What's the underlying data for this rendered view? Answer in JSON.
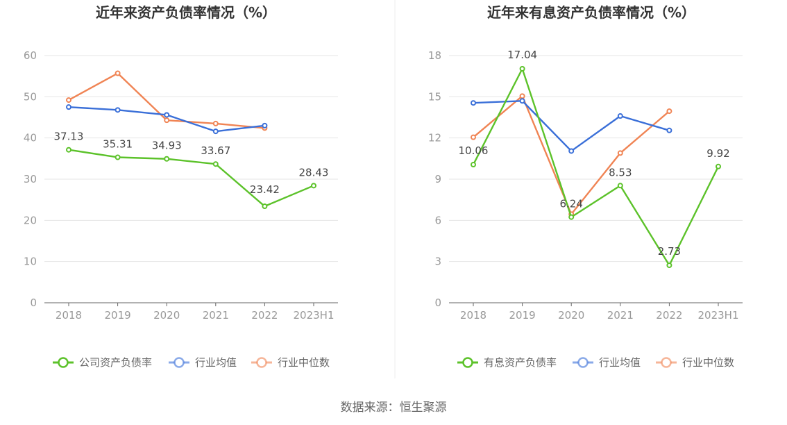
{
  "source_text": "数据来源：恒生聚源",
  "chart_data": [
    {
      "type": "line",
      "title": "近年来资产负债率情况（%）",
      "categories": [
        "2018",
        "2019",
        "2020",
        "2021",
        "2022",
        "2023H1"
      ],
      "ylim": [
        0,
        60
      ],
      "yticks": [
        0,
        10,
        20,
        30,
        40,
        50,
        60
      ],
      "grid": true,
      "legend_position": "bottom",
      "series": [
        {
          "name": "公司资产负债率",
          "color": "#5cc22a",
          "values": [
            37.13,
            35.31,
            34.93,
            33.67,
            23.42,
            28.43
          ],
          "labels": [
            "37.13",
            "35.31",
            "34.93",
            "33.67",
            "23.42",
            "28.43"
          ]
        },
        {
          "name": "行业均值",
          "color": "#3a6fd8",
          "values": [
            47.5,
            46.8,
            45.6,
            41.6,
            43.0,
            null
          ]
        },
        {
          "name": "行业中位数",
          "color": "#f08454",
          "values": [
            49.2,
            55.7,
            44.3,
            43.5,
            42.4,
            null
          ]
        }
      ]
    },
    {
      "type": "line",
      "title": "近年来有息资产负债率情况（%）",
      "categories": [
        "2018",
        "2019",
        "2020",
        "2021",
        "2022",
        "2023H1"
      ],
      "ylim": [
        0,
        18
      ],
      "yticks": [
        0,
        3,
        6,
        9,
        12,
        15,
        18
      ],
      "grid": true,
      "legend_position": "bottom",
      "series": [
        {
          "name": "有息资产负债率",
          "color": "#5cc22a",
          "values": [
            10.06,
            17.04,
            6.24,
            8.53,
            2.73,
            9.92
          ],
          "labels": [
            "10.06",
            "17.04",
            "6.24",
            "8.53",
            "2.73",
            "9.92"
          ]
        },
        {
          "name": "行业均值",
          "color": "#3a6fd8",
          "values": [
            14.55,
            14.7,
            11.05,
            13.6,
            12.55,
            null
          ]
        },
        {
          "name": "行业中位数",
          "color": "#f08454",
          "values": [
            12.05,
            15.05,
            6.45,
            10.9,
            13.95,
            null
          ]
        }
      ]
    }
  ]
}
